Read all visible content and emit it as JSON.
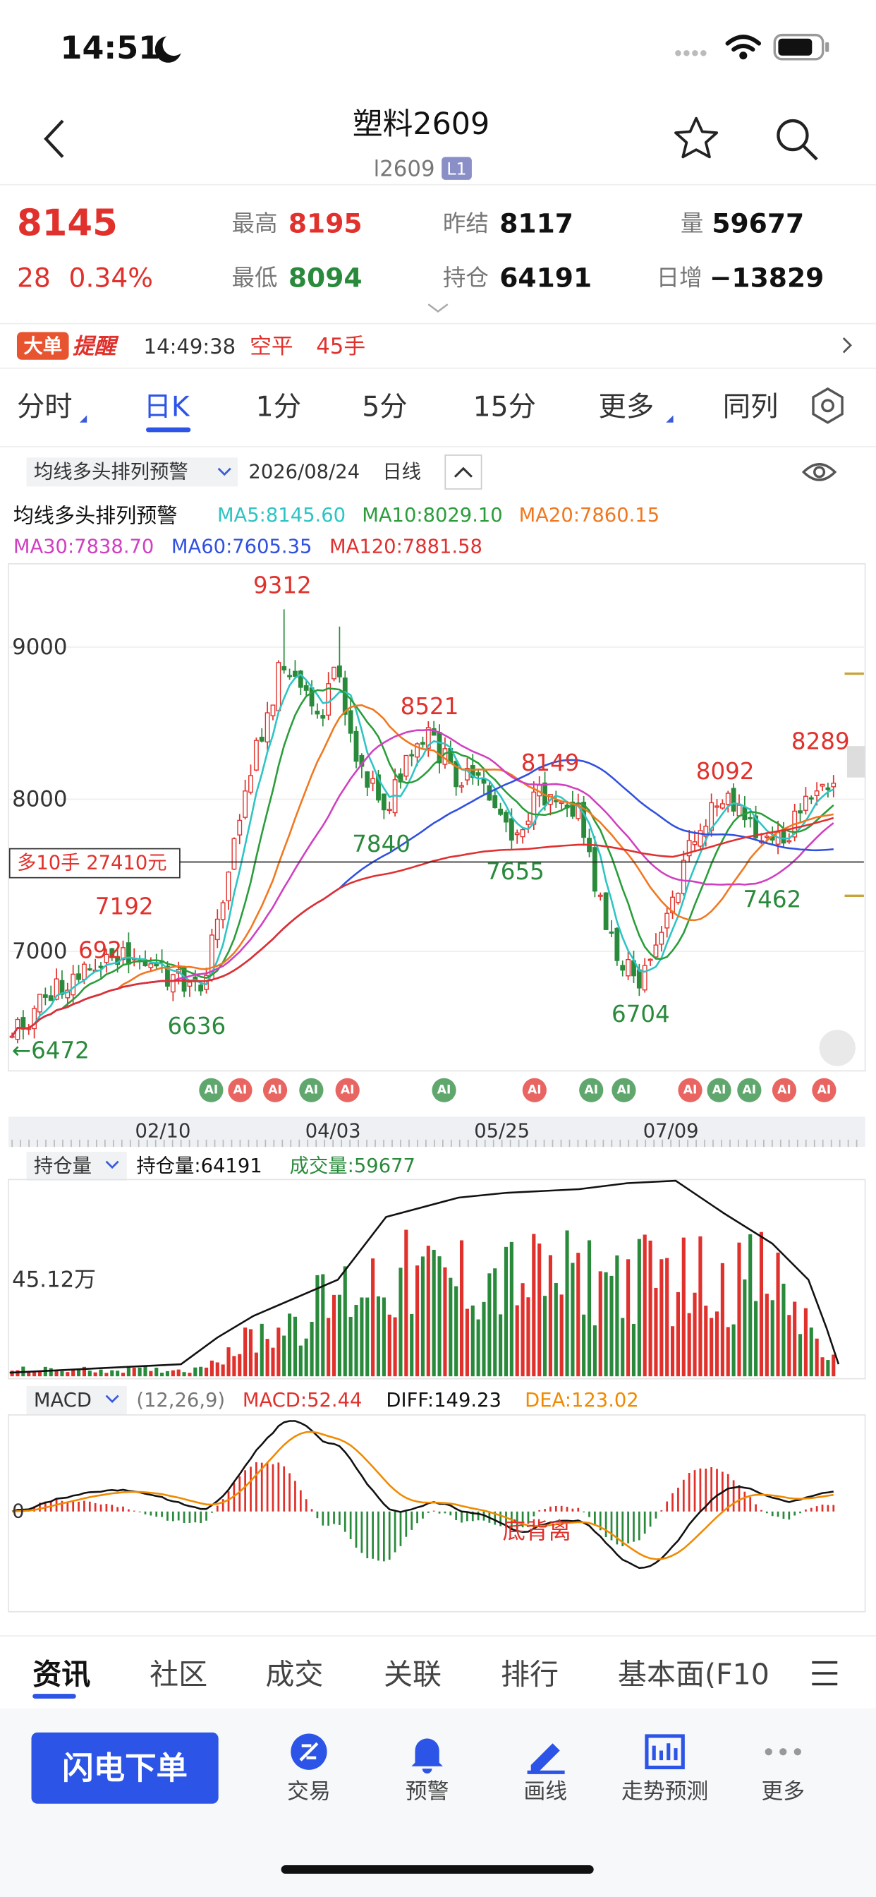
{
  "status_bar": {
    "time": "14:51"
  },
  "header": {
    "title": "塑料2609",
    "code": "l2609",
    "badge": "L1"
  },
  "quote": {
    "price": "8145",
    "change": "28",
    "change_pct": "0.34%",
    "high_label": "最高",
    "high": "8195",
    "low_label": "最低",
    "low": "8094",
    "prev_settle_label": "昨结",
    "prev_settle": "8117",
    "open_interest_label": "持仓",
    "open_interest": "64191",
    "volume_label": "量",
    "volume": "59677",
    "daily_change_label": "日增",
    "daily_change": "−13829"
  },
  "alert": {
    "tag": "大单",
    "title": "提醒",
    "time": "14:49:38",
    "action": "空平",
    "qty": "45手"
  },
  "period_tabs": [
    "分时",
    "日K",
    "1分",
    "5分",
    "15分",
    "更多",
    "同列"
  ],
  "indicator_bar": {
    "selector": "均线多头排列预警",
    "date": "2026/08/24",
    "period": "日线"
  },
  "ma_legend": {
    "name": "均线多头排列预警",
    "items": [
      "MA5:8145.60",
      "MA10:8029.10",
      "MA20:7860.15",
      "MA30:7838.70",
      "MA60:7605.35",
      "MA120:7881.58"
    ]
  },
  "kline": {
    "yticks": [
      "9000",
      "8000",
      "7000"
    ],
    "position_label": "多10手 27410元",
    "highs": [
      "9312",
      "8521",
      "8149",
      "8092",
      "8289",
      "7192",
      "692"
    ],
    "lows": [
      "7840",
      "7655",
      "6636",
      "6704",
      "7462",
      "←6472"
    ],
    "ai_badge": "AI",
    "dates": [
      "02/10",
      "04/03",
      "05/25",
      "07/09"
    ]
  },
  "volume_panel": {
    "selector": "持仓量",
    "open_interest": "持仓量:64191",
    "volume": "成交量:59677",
    "scale_label": "45.12万"
  },
  "macd_panel": {
    "selector": "MACD",
    "params": "(12,26,9)",
    "macd": "MACD:52.44",
    "diff": "DIFF:149.23",
    "dea": "DEA:123.02",
    "zero": "0",
    "annotation": "底背离"
  },
  "bottom_tabs": [
    "资讯",
    "社区",
    "成交",
    "关联",
    "排行",
    "基本面(F10"
  ],
  "toolbar": {
    "order_button": "闪电下单",
    "items": [
      "交易",
      "预警",
      "画线",
      "走势预测",
      "更多"
    ]
  }
}
